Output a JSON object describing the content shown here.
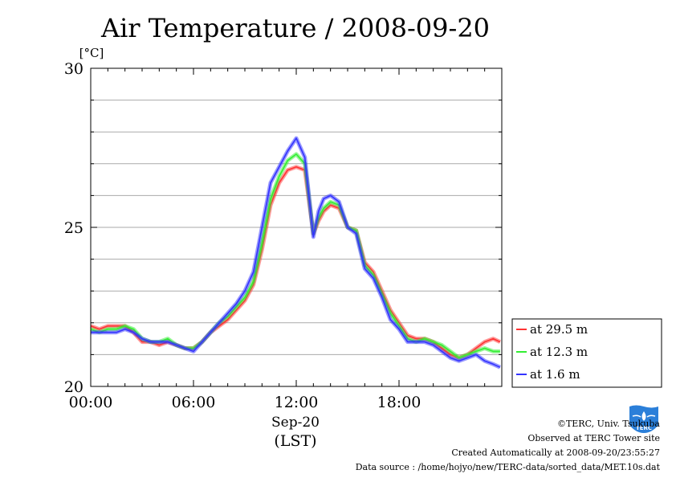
{
  "chart_data": {
    "type": "line",
    "title": "Air Temperature / 2008-09-20",
    "ylabel": "[°C]",
    "ylim": [
      20,
      30
    ],
    "yticks": [
      "20",
      "25",
      "30"
    ],
    "xlim": [
      0,
      24
    ],
    "xticks": [
      "00:00",
      "06:00",
      "12:00",
      "18:00"
    ],
    "xlabel_date": "Sep-20",
    "xlabel_zone": "(LST)",
    "grid": true,
    "legend_position": "right",
    "series": [
      {
        "name": "at 29.5 m",
        "color": "#ff3333",
        "x": [
          0,
          0.5,
          1,
          1.5,
          2,
          2.5,
          3,
          3.5,
          4,
          4.5,
          5,
          5.5,
          6,
          6.5,
          7,
          7.5,
          8,
          8.5,
          9,
          9.5,
          10,
          10.5,
          11,
          11.5,
          12,
          12.5,
          13,
          13.3,
          13.6,
          14,
          14.5,
          15,
          15.5,
          16,
          16.5,
          17,
          17.5,
          18,
          18.5,
          19,
          19.5,
          20,
          20.5,
          21,
          21.5,
          22,
          22.5,
          23,
          23.5,
          23.9
        ],
        "values": [
          21.9,
          21.8,
          21.9,
          21.9,
          21.9,
          21.7,
          21.4,
          21.4,
          21.3,
          21.4,
          21.3,
          21.2,
          21.2,
          21.4,
          21.7,
          21.9,
          22.1,
          22.4,
          22.7,
          23.2,
          24.3,
          25.7,
          26.4,
          26.8,
          26.9,
          26.8,
          24.8,
          25.2,
          25.5,
          25.7,
          25.6,
          25.0,
          24.9,
          23.9,
          23.6,
          23.0,
          22.4,
          22.0,
          21.6,
          21.5,
          21.5,
          21.4,
          21.2,
          21.0,
          20.9,
          21.0,
          21.2,
          21.4,
          21.5,
          21.4
        ]
      },
      {
        "name": "at 12.3 m",
        "color": "#33ee33",
        "x": [
          0,
          0.5,
          1,
          1.5,
          2,
          2.5,
          3,
          3.5,
          4,
          4.5,
          5,
          5.5,
          6,
          6.5,
          7,
          7.5,
          8,
          8.5,
          9,
          9.5,
          10,
          10.5,
          11,
          11.5,
          12,
          12.5,
          13,
          13.3,
          13.6,
          14,
          14.5,
          15,
          15.5,
          16,
          16.5,
          17,
          17.5,
          18,
          18.5,
          19,
          19.5,
          20,
          20.5,
          21,
          21.5,
          22,
          22.5,
          23,
          23.5,
          23.9
        ],
        "values": [
          21.8,
          21.7,
          21.8,
          21.8,
          21.9,
          21.8,
          21.5,
          21.4,
          21.4,
          21.5,
          21.3,
          21.2,
          21.2,
          21.4,
          21.7,
          22.0,
          22.2,
          22.5,
          22.8,
          23.3,
          24.5,
          25.9,
          26.6,
          27.1,
          27.3,
          27.0,
          24.8,
          25.3,
          25.6,
          25.8,
          25.7,
          25.0,
          24.9,
          23.8,
          23.5,
          22.9,
          22.3,
          21.9,
          21.5,
          21.4,
          21.5,
          21.4,
          21.3,
          21.1,
          20.9,
          21.0,
          21.1,
          21.2,
          21.1,
          21.1
        ]
      },
      {
        "name": "at 1.6 m",
        "color": "#3333ff",
        "x": [
          0,
          0.5,
          1,
          1.5,
          2,
          2.5,
          3,
          3.5,
          4,
          4.5,
          5,
          5.5,
          6,
          6.5,
          7,
          7.5,
          8,
          8.5,
          9,
          9.5,
          10,
          10.5,
          11,
          11.5,
          12,
          12.5,
          13,
          13.3,
          13.6,
          14,
          14.5,
          15,
          15.5,
          16,
          16.5,
          17,
          17.5,
          18,
          18.5,
          19,
          19.5,
          20,
          20.5,
          21,
          21.5,
          22,
          22.5,
          23,
          23.5,
          23.9
        ],
        "values": [
          21.7,
          21.7,
          21.7,
          21.7,
          21.8,
          21.7,
          21.5,
          21.4,
          21.4,
          21.4,
          21.3,
          21.2,
          21.1,
          21.4,
          21.7,
          22.0,
          22.3,
          22.6,
          23.0,
          23.6,
          25.0,
          26.4,
          26.9,
          27.4,
          27.8,
          27.2,
          24.7,
          25.5,
          25.9,
          26.0,
          25.8,
          25.0,
          24.8,
          23.7,
          23.4,
          22.8,
          22.1,
          21.8,
          21.4,
          21.4,
          21.4,
          21.3,
          21.1,
          20.9,
          20.8,
          20.9,
          21.0,
          20.8,
          20.7,
          20.6
        ]
      }
    ]
  },
  "footer": {
    "copyright": "©TERC, Univ. Tsukuba",
    "observed": "Observed at TERC Tower site",
    "created": "Created Automatically at 2008-09-20/23:55:27",
    "source": "Data source : /home/hojyo/new/TERC-data/sorted_data/MET.10s.dat"
  },
  "logo": {
    "text": "TERC",
    "color": "#2b7fd9"
  }
}
